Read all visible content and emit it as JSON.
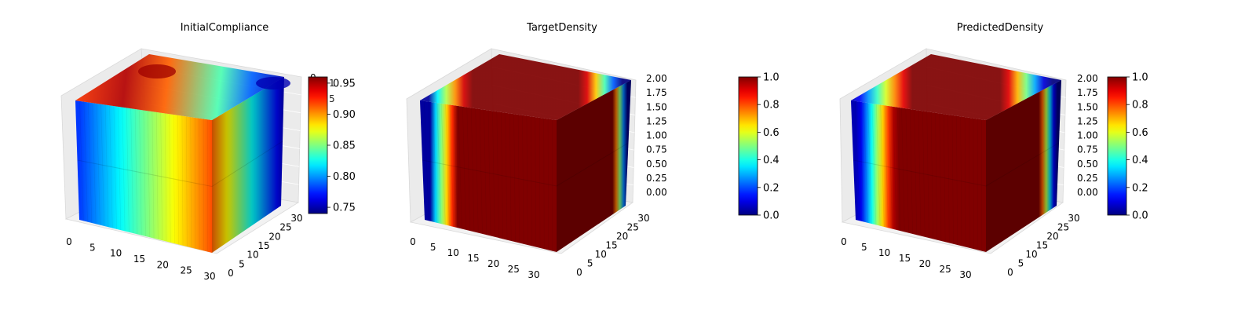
{
  "chart_data": [
    {
      "type": "voxel-3d",
      "title": "InitialCompliance",
      "x_ticks": [
        "0",
        "5",
        "10",
        "15",
        "20",
        "25",
        "30"
      ],
      "y_ticks": [
        "0",
        "5",
        "10",
        "15",
        "20",
        "25",
        "30"
      ],
      "z_ticks": [
        "0",
        "0",
        "0",
        "0",
        "0",
        "0",
        "0",
        "0",
        "0"
      ],
      "xlim": [
        0,
        32
      ],
      "ylim": [
        0,
        32
      ],
      "zlim": [
        0,
        2
      ],
      "colormap": "jet",
      "colorbar": {
        "min": 0.74,
        "max": 0.96,
        "ticks": [
          "0.75",
          "0.80",
          "0.85",
          "0.90",
          "0.95"
        ],
        "tick_values": [
          0.75,
          0.8,
          0.85,
          0.9,
          0.95
        ],
        "overlap_labels": [
          "1",
          "5"
        ]
      }
    },
    {
      "type": "voxel-3d",
      "title": "TargetDensity",
      "x_ticks": [
        "0",
        "5",
        "10",
        "15",
        "20",
        "25",
        "30"
      ],
      "y_ticks": [
        "0",
        "5",
        "10",
        "15",
        "20",
        "25",
        "30"
      ],
      "z_ticks": [
        "0.00",
        "0.25",
        "0.50",
        "0.75",
        "1.00",
        "1.25",
        "1.50",
        "1.75",
        "2.00"
      ],
      "xlim": [
        0,
        32
      ],
      "ylim": [
        0,
        32
      ],
      "zlim": [
        0,
        2
      ],
      "colormap": "jet",
      "colorbar": {
        "min": 0,
        "max": 1,
        "ticks": [
          "0.0",
          "0.2",
          "0.4",
          "0.6",
          "0.8",
          "1.0"
        ],
        "tick_values": [
          0,
          0.2,
          0.4,
          0.6,
          0.8,
          1.0
        ]
      }
    },
    {
      "type": "voxel-3d",
      "title": "PredictedDensity",
      "x_ticks": [
        "0",
        "5",
        "10",
        "15",
        "20",
        "25",
        "30"
      ],
      "y_ticks": [
        "0",
        "5",
        "10",
        "15",
        "20",
        "25",
        "30"
      ],
      "z_ticks": [
        "0.00",
        "0.25",
        "0.50",
        "0.75",
        "1.00",
        "1.25",
        "1.50",
        "1.75",
        "2.00"
      ],
      "xlim": [
        0,
        32
      ],
      "ylim": [
        0,
        32
      ],
      "zlim": [
        0,
        2
      ],
      "colormap": "jet",
      "colorbar": {
        "min": 0,
        "max": 1,
        "ticks": [
          "0.0",
          "0.2",
          "0.4",
          "0.6",
          "0.8",
          "1.0"
        ],
        "tick_values": [
          0,
          0.2,
          0.4,
          0.6,
          0.8,
          1.0
        ]
      }
    }
  ]
}
